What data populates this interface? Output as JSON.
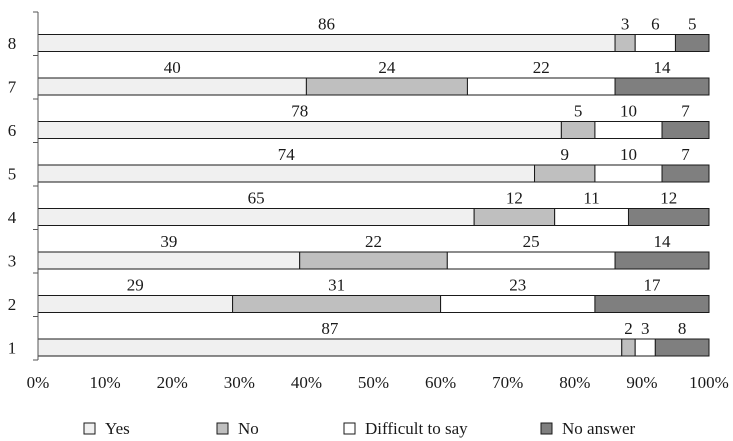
{
  "chart_data": {
    "type": "bar",
    "orientation": "horizontal",
    "stacked": true,
    "categories": [
      "1",
      "2",
      "3",
      "4",
      "5",
      "6",
      "7",
      "8"
    ],
    "series": [
      {
        "name": "Yes",
        "color": "#f0f0f0",
        "values": [
          87,
          29,
          39,
          65,
          74,
          78,
          40,
          86
        ]
      },
      {
        "name": "No",
        "color": "#bfbfbf",
        "values": [
          2,
          31,
          22,
          12,
          9,
          5,
          24,
          3
        ]
      },
      {
        "name": "Difficult to say",
        "color": "#ffffff",
        "values": [
          3,
          23,
          25,
          11,
          10,
          10,
          22,
          6
        ]
      },
      {
        "name": "No answer",
        "color": "#7f7f7f",
        "values": [
          8,
          17,
          14,
          12,
          7,
          7,
          14,
          5
        ]
      }
    ],
    "xlim": [
      0,
      100
    ],
    "x_ticks": [
      "0%",
      "10%",
      "20%",
      "30%",
      "40%",
      "50%",
      "60%",
      "70%",
      "80%",
      "90%",
      "100%"
    ],
    "legend_position": "bottom",
    "title": "",
    "xlabel": "",
    "ylabel": ""
  }
}
